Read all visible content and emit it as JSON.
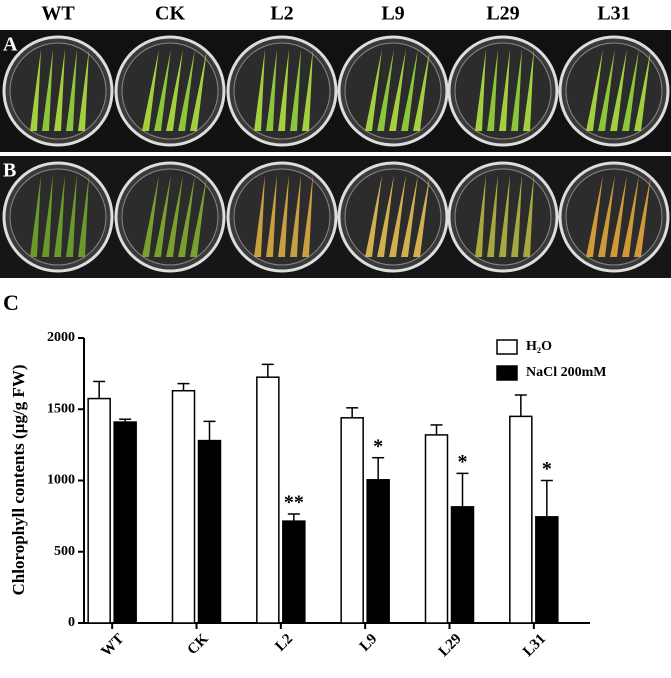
{
  "panel_labels": [
    "A",
    "B",
    "C"
  ],
  "photo_labels": [
    "WT",
    "CK",
    "L2",
    "L9",
    "L29",
    "L31"
  ],
  "chart_data": {
    "type": "bar",
    "ylabel": "Chlorophyll contents (µg/g FW)",
    "categories": [
      "WT",
      "CK",
      "L2",
      "L9",
      "L29",
      "L31"
    ],
    "series": [
      {
        "name": "H₂O",
        "color": "#ffffff",
        "values": [
          1575,
          1630,
          1725,
          1440,
          1320,
          1450
        ],
        "errors": [
          120,
          50,
          90,
          70,
          70,
          150
        ]
      },
      {
        "name": "NaCl 200mM",
        "color": "#000000",
        "values": [
          1410,
          1280,
          715,
          1005,
          815,
          745
        ],
        "errors": [
          20,
          135,
          50,
          155,
          235,
          255
        ],
        "significance": [
          null,
          null,
          "**",
          "*",
          "*",
          "*"
        ]
      }
    ],
    "ylim": [
      0,
      2000
    ],
    "yticks": [
      0,
      500,
      1000,
      1500,
      2000
    ],
    "grid": false,
    "legend": "top-right"
  }
}
